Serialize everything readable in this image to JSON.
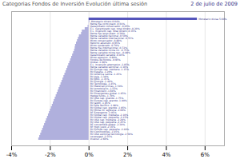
{
  "chart_data": {
    "type": "bar",
    "orientation": "horizontal",
    "title": "Categorias Fondos de Inversión Evolución última sesión",
    "subtitle": "2 de julio de 2009",
    "categories": [
      "Inverso -2.60%",
      "Leveraged -2.55%",
      "RV USA sectorial tecnología -2.50%",
      "RV Commodities -2.45%",
      "RV Europa cap. pequeña -2.40%",
      "RF High yield -2.35%",
      "RF convertible global -2.30%",
      "RV USA cap. pequeña -2.25%",
      "RV USA cap. mediana -2.20%",
      "RV Global cap. pequeña -2.15%",
      "RV Global cap. mediana -2.10%",
      "RF Emergente -2.05%",
      "RV Mixta int. agresiva -2.00%",
      "RV Global cap. grande -1.95%",
      "RV Asia Pacífico -1.90%",
      "RV Japón -1.85%",
      "RV Europa cap. grande -1.80%",
      "RV USA cap. grande -1.75%",
      "Hedge funds -1.70%",
      "RV Emergentes global -1.65%",
      "RV Financiero -1.60%",
      "RV Inmobiliario -1.55%",
      "RV Materias primas -1.50%",
      "RV Tecnología -1.45%",
      "RV Energía -1.40%",
      "RV BRIC -1.35%",
      "RV Asia -1.30%",
      "RV América Latina -1.25%",
      "RV España -1.20%",
      "RV Europa cap. mediana -1.15%",
      "Renta variable sectorial -1.10%",
      "E.L. Inversión alternativo -1.05%",
      "Global -1.00%",
      "Fondos de fondos -0.95%",
      "Mixto agresivo -0.90%",
      "Garantizado variable -0.85%",
      "Renta variable mixta nac. -0.80%",
      "Renta variable mixta int. -0.75%",
      "Renta fija internacional -0.72%",
      "Mixto moderado -0.70%",
      "Retorno absoluto -0.65%",
      "Mixto conservador -0.60%",
      "Renta variable internacional -0.55%",
      "Renta variable nacional -0.50%",
      "Renta fija largo plazo -0.39%",
      "E.L. Inversión cap. total dinero -0.35%",
      "E.L. Garantizado cap. total dinero -0.20%",
      "Garantizado conservador -0.05%",
      "Renta fija corto plazo -0.01%",
      "Monetario dinero 0.04%",
      "Monetario divisa 5.60%"
    ],
    "values": [
      -2.6,
      -2.55,
      -2.5,
      -2.45,
      -2.4,
      -2.35,
      -2.3,
      -2.25,
      -2.2,
      -2.15,
      -2.1,
      -2.05,
      -2.0,
      -1.95,
      -1.9,
      -1.85,
      -1.8,
      -1.75,
      -1.7,
      -1.65,
      -1.6,
      -1.55,
      -1.5,
      -1.45,
      -1.4,
      -1.35,
      -1.3,
      -1.25,
      -1.2,
      -1.15,
      -1.1,
      -1.05,
      -1.0,
      -0.95,
      -0.9,
      -0.85,
      -0.8,
      -0.75,
      -0.72,
      -0.7,
      -0.65,
      -0.6,
      -0.55,
      -0.5,
      -0.39,
      -0.35,
      -0.2,
      -0.05,
      -0.01,
      0.04,
      5.6
    ],
    "colors": [
      "#b0b0dd",
      "#b0b0dd",
      "#b0b0dd",
      "#b0b0dd",
      "#b0b0dd",
      "#b0b0dd",
      "#b0b0dd",
      "#b0b0dd",
      "#b0b0dd",
      "#b0b0dd",
      "#b0b0dd",
      "#b0b0dd",
      "#b0b0dd",
      "#b0b0dd",
      "#b0b0dd",
      "#b0b0dd",
      "#b0b0dd",
      "#b0b0dd",
      "#b0b0dd",
      "#b0b0dd",
      "#b0b0dd",
      "#b0b0dd",
      "#b0b0dd",
      "#b0b0dd",
      "#b0b0dd",
      "#b0b0dd",
      "#b0b0dd",
      "#b0b0dd",
      "#b0b0dd",
      "#b0b0dd",
      "#b0b0dd",
      "#b0b0dd",
      "#b0b0dd",
      "#b0b0dd",
      "#b0b0dd",
      "#b0b0dd",
      "#b0b0dd",
      "#b0b0dd",
      "#b0b0dd",
      "#b0b0dd",
      "#b0b0dd",
      "#b0b0dd",
      "#b0b0dd",
      "#b0b0dd",
      "#b0b0dd",
      "#b0b0dd",
      "#b0b0dd",
      "#b0b0dd",
      "#b0b0dd",
      "#b0b0dd",
      "#5555bb"
    ],
    "xlim": [
      -4,
      7
    ],
    "xticks": [
      {
        "value": -4,
        "label": "-4%"
      },
      {
        "value": -2,
        "label": "-2%"
      },
      {
        "value": 0,
        "label": "0%"
      },
      {
        "value": 2,
        "label": "2%"
      },
      {
        "value": 4,
        "label": "4%"
      },
      {
        "value": 6,
        "label": "6%"
      }
    ],
    "grid": true
  }
}
